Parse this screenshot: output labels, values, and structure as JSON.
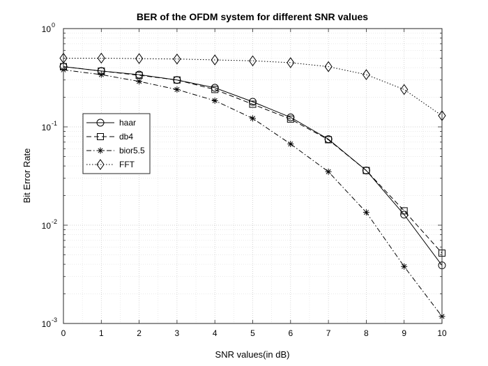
{
  "chart_data": {
    "type": "line",
    "title": "BER of the OFDM system for different SNR values",
    "xlabel": "SNR values(in dB)",
    "ylabel": "Bit Error Rate",
    "x": [
      0,
      1,
      2,
      3,
      4,
      5,
      6,
      7,
      8,
      9,
      10
    ],
    "xlim": [
      0,
      10
    ],
    "ylim": [
      0.001,
      1
    ],
    "yscale": "log",
    "grid": true,
    "minor_grid": true,
    "legend_position": "left-middle",
    "x_ticks": [
      "0",
      "1",
      "2",
      "3",
      "4",
      "5",
      "6",
      "7",
      "8",
      "9",
      "10"
    ],
    "y_ticks": [
      {
        "base": "10",
        "exp": "0"
      },
      {
        "base": "10",
        "exp": "-1"
      },
      {
        "base": "10",
        "exp": "-2"
      },
      {
        "base": "10",
        "exp": "-3"
      }
    ],
    "series": [
      {
        "name": "haar",
        "marker": "circle",
        "line": "solid",
        "values": [
          0.41,
          0.37,
          0.34,
          0.3,
          0.25,
          0.18,
          0.125,
          0.075,
          0.036,
          0.0128,
          0.0039
        ]
      },
      {
        "name": "db4",
        "marker": "square",
        "line": "dashed",
        "values": [
          0.41,
          0.37,
          0.335,
          0.3,
          0.24,
          0.17,
          0.12,
          0.074,
          0.036,
          0.014,
          0.0052
        ]
      },
      {
        "name": "bior5.5",
        "marker": "asterisk",
        "line": "dashdot",
        "values": [
          0.38,
          0.34,
          0.29,
          0.24,
          0.185,
          0.122,
          0.067,
          0.035,
          0.0135,
          0.0038,
          0.00118
        ]
      },
      {
        "name": "FFT",
        "marker": "diamond",
        "line": "dotted",
        "values": [
          0.5,
          0.5,
          0.495,
          0.49,
          0.48,
          0.47,
          0.45,
          0.41,
          0.34,
          0.24,
          0.13
        ]
      }
    ]
  }
}
